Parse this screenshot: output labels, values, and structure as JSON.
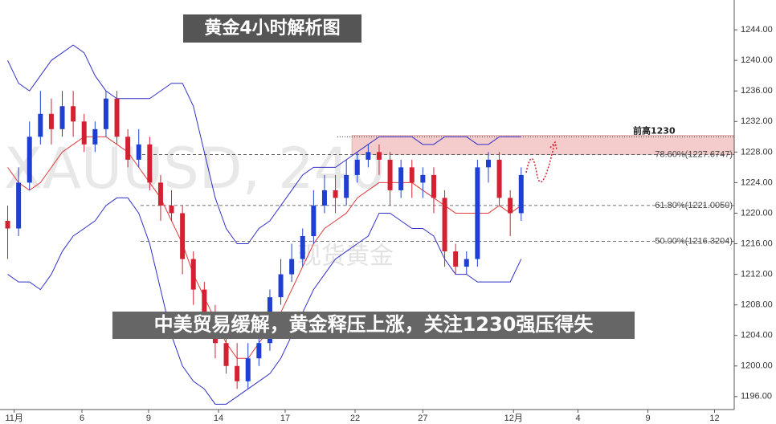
{
  "chart_data": {
    "type": "candlestick",
    "title": "黄金4小时解析图",
    "subtitle": "中美贸易缓解，黄金释压上涨，关注1230强压得失",
    "watermark": [
      "XAUUSD, 240",
      "现货黄金"
    ],
    "x": [
      0,
      1,
      2,
      3,
      4,
      5,
      6,
      7,
      8,
      9,
      10,
      11,
      12,
      13,
      14,
      15,
      16,
      17,
      18,
      19,
      20,
      21,
      22,
      23,
      24,
      25,
      26,
      27,
      28,
      29,
      30,
      31,
      32,
      33,
      34,
      35,
      36,
      37,
      38,
      39,
      40,
      41,
      42,
      43,
      44,
      45,
      46,
      47
    ],
    "open": [
      1219,
      1218,
      1224,
      1230,
      1233,
      1231,
      1234,
      1232,
      1229,
      1231,
      1235,
      1230,
      1227,
      1229,
      1224,
      1221,
      1220,
      1214,
      1210,
      1206,
      1203,
      1200,
      1198,
      1201,
      1203,
      1209,
      1212,
      1214,
      1217,
      1221,
      1223,
      1222,
      1225,
      1227,
      1228,
      1227,
      1223,
      1226,
      1224,
      1225,
      1222,
      1215,
      1213,
      1214,
      1226,
      1227,
      1222,
      1220
    ],
    "high": [
      1221,
      1226,
      1232,
      1236,
      1235,
      1236,
      1236,
      1233,
      1232,
      1236,
      1236,
      1231,
      1231,
      1230,
      1225,
      1223,
      1221,
      1215,
      1211,
      1208,
      1204,
      1203,
      1203,
      1205,
      1210,
      1214,
      1216,
      1218,
      1223,
      1225,
      1225,
      1227,
      1228,
      1229,
      1229,
      1228,
      1227,
      1227,
      1226,
      1226,
      1223,
      1216,
      1215,
      1227,
      1228,
      1228,
      1223,
      1226
    ],
    "low": [
      1214,
      1217,
      1223,
      1229,
      1229,
      1230,
      1230,
      1228,
      1228,
      1230,
      1229,
      1226,
      1226,
      1223,
      1219,
      1219,
      1212,
      1208,
      1205,
      1201,
      1199,
      1197,
      1197,
      1200,
      1202,
      1208,
      1211,
      1213,
      1216,
      1220,
      1220,
      1221,
      1224,
      1226,
      1225,
      1221,
      1222,
      1222,
      1222,
      1220,
      1213,
      1212,
      1212,
      1213,
      1224,
      1221,
      1217,
      1219
    ],
    "close": [
      1218,
      1224,
      1230,
      1233,
      1231,
      1234,
      1232,
      1229,
      1231,
      1235,
      1230,
      1227,
      1229,
      1224,
      1221,
      1220,
      1214,
      1210,
      1206,
      1203,
      1200,
      1198,
      1201,
      1203,
      1209,
      1212,
      1214,
      1217,
      1221,
      1223,
      1222,
      1225,
      1227,
      1228,
      1227,
      1223,
      1226,
      1224,
      1225,
      1222,
      1215,
      1213,
      1214,
      1226,
      1227,
      1222,
      1220,
      1225
    ],
    "up_color": "#1f3fd0",
    "down_color": "#d42030",
    "bands": [
      {
        "color": "#3030c8",
        "values": [
          1240,
          1237,
          1236,
          1238,
          1240,
          1241,
          1242,
          1241,
          1238,
          1236,
          1235,
          1235,
          1235,
          1235,
          1236,
          1237,
          1237,
          1234,
          1228,
          1222,
          1218,
          1216,
          1216,
          1218,
          1219,
          1221,
          1223,
          1225,
          1226,
          1226,
          1226,
          1227,
          1228,
          1229,
          1230,
          1230,
          1230,
          1230,
          1229,
          1229,
          1230,
          1230,
          1230,
          1229,
          1229,
          1230,
          1230,
          1230
        ]
      },
      {
        "color": "#e03a3a",
        "values": [
          1226,
          1224,
          1223,
          1224,
          1226,
          1228,
          1229,
          1230,
          1230,
          1230,
          1229,
          1228,
          1226,
          1224,
          1222,
          1219,
          1216,
          1212,
          1209,
          1206,
          1203,
          1201,
          1201,
          1203,
          1205,
          1207,
          1210,
          1213,
          1216,
          1218,
          1219,
          1220,
          1222,
          1223,
          1224,
          1224,
          1224,
          1224,
          1223,
          1222,
          1221,
          1220,
          1220,
          1220,
          1220,
          1221,
          1220,
          1221
        ]
      },
      {
        "color": "#3030c8",
        "values": [
          1212,
          1211,
          1211,
          1210,
          1212,
          1215,
          1217,
          1218,
          1219,
          1221,
          1222,
          1222,
          1220,
          1216,
          1210,
          1204,
          1200,
          1198,
          1197,
          1195,
          1195,
          1196,
          1197,
          1198,
          1199,
          1201,
          1204,
          1207,
          1210,
          1212,
          1214,
          1215,
          1216,
          1217,
          1220,
          1220,
          1219,
          1218,
          1218,
          1217,
          1214,
          1212,
          1212,
          1211,
          1211,
          1211,
          1211,
          1214
        ]
      }
    ],
    "fib_levels": [
      {
        "value": 1227.6747,
        "label": "78.60%(1227.6747)"
      },
      {
        "value": 1221.005,
        "label": "61.80%(1221.0050)"
      },
      {
        "value": 1216.3204,
        "label": "50.00%(1216.3204)"
      }
    ],
    "resistance": {
      "value": 1230,
      "label": "前高1230",
      "zone": [
        1227.7,
        1230.2
      ],
      "color": "#f5cccc"
    },
    "xlim": [
      -0.7,
      66.5
    ],
    "ylim": [
      1194.3,
      1247.9
    ],
    "xticks": [
      {
        "value": 0.6,
        "label": "11月"
      },
      {
        "value": 6.8,
        "label": "6"
      },
      {
        "value": 12.9,
        "label": "9"
      },
      {
        "value": 19.3,
        "label": "14"
      },
      {
        "value": 25.4,
        "label": "17"
      },
      {
        "value": 31.8,
        "label": "22"
      },
      {
        "value": 38,
        "label": "27"
      },
      {
        "value": 46.3,
        "label": "12月"
      },
      {
        "value": 52.2,
        "label": "4"
      },
      {
        "value": 58.6,
        "label": "9"
      },
      {
        "value": 64.7,
        "label": "12"
      }
    ],
    "yticks": [
      {
        "value": 1196,
        "label": "1196.00"
      },
      {
        "value": 1200,
        "label": "1200.00"
      },
      {
        "value": 1204,
        "label": "1204.00"
      },
      {
        "value": 1208,
        "label": "1208.00"
      },
      {
        "value": 1212,
        "label": "1212.00"
      },
      {
        "value": 1216,
        "label": "1216.00"
      },
      {
        "value": 1220,
        "label": "1220.00"
      },
      {
        "value": 1224,
        "label": "1224.00"
      },
      {
        "value": 1228,
        "label": "1228.00"
      },
      {
        "value": 1232,
        "label": "1232.00"
      },
      {
        "value": 1236,
        "label": "1236.00"
      },
      {
        "value": 1240,
        "label": "1240.00"
      },
      {
        "value": 1244,
        "label": "1244.00"
      }
    ]
  }
}
